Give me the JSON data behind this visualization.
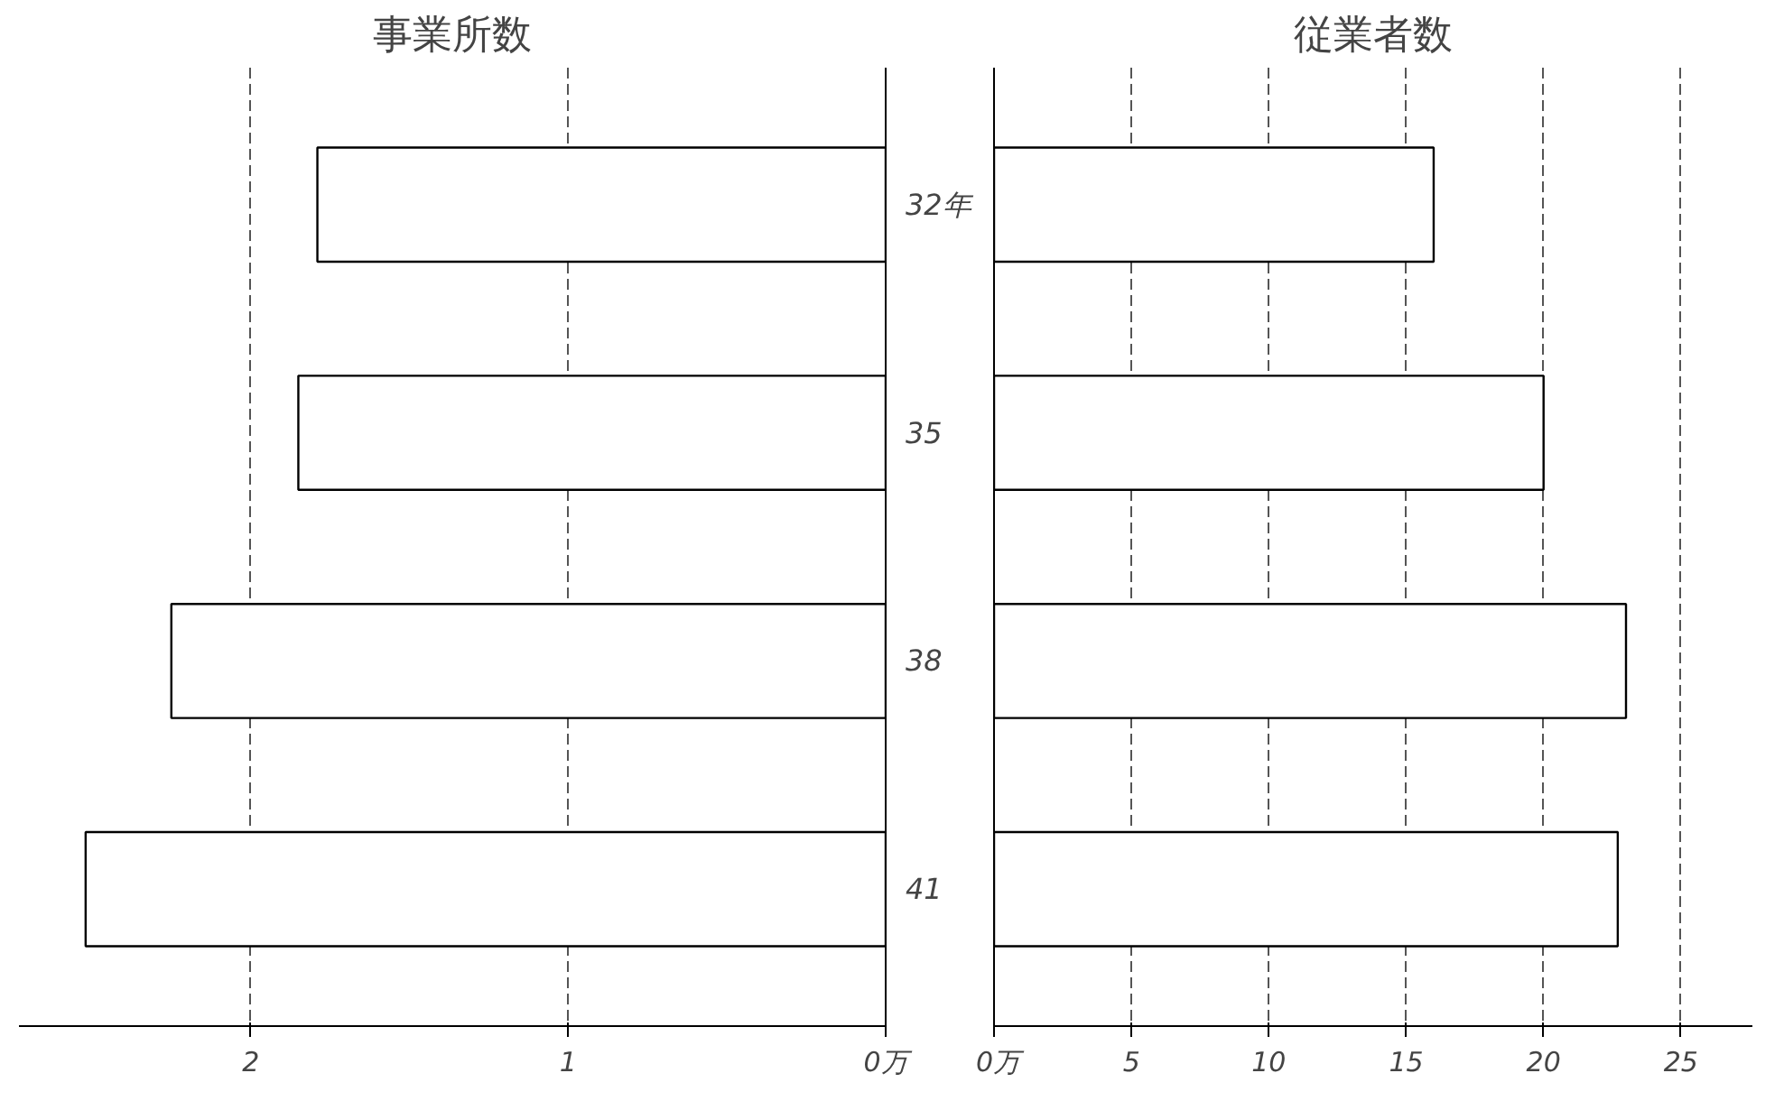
{
  "chart_data": [
    {
      "type": "bar",
      "orientation": "horizontal",
      "title": "事業所数",
      "categories": [
        "32年",
        "35",
        "38",
        "41"
      ],
      "values": [
        1.79,
        1.85,
        2.25,
        2.52
      ],
      "color": "#ffffff",
      "xlim": [
        2.73,
        0
      ],
      "xticks": [
        2,
        1,
        {
          "value": 0,
          "label": "0万"
        }
      ],
      "grid": "x"
    },
    {
      "type": "bar",
      "orientation": "horizontal",
      "title": "従業者数",
      "categories": [
        null,
        null,
        null,
        null
      ],
      "values": [
        16.0,
        20.0,
        23.0,
        22.7
      ],
      "color": "#ffffff",
      "xlim": [
        0,
        27.6
      ],
      "xticks": [
        {
          "value": 0,
          "label": "0万"
        },
        5,
        10,
        15,
        20,
        25
      ],
      "grid": "x",
      "tick_labels": "x"
    }
  ]
}
